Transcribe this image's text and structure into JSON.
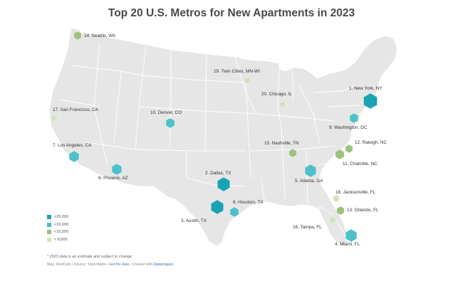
{
  "title": "Top 20 U.S. Metros for New Apartments in 2023",
  "legend": [
    {
      "label": ">25,000",
      "color": "#1aa3b3"
    },
    {
      "label": ">15,000",
      "color": "#4fc0c8"
    },
    {
      "label": "<15,000",
      "color": "#9dc27d"
    },
    {
      "label": "< 8,000",
      "color": "#d4e3be"
    }
  ],
  "metros": [
    {
      "label": "1. New York, NY",
      "tier": 0
    },
    {
      "label": "2. Dallas, TX",
      "tier": 0
    },
    {
      "label": "3. Austin, TX",
      "tier": 0
    },
    {
      "label": "4. Miami, FL",
      "tier": 1
    },
    {
      "label": "5. Atlanta, GA",
      "tier": 1
    },
    {
      "label": "6. Phoenix, AZ",
      "tier": 1
    },
    {
      "label": "7. Los Angeles, CA",
      "tier": 1
    },
    {
      "label": "8. Houston, TX",
      "tier": 1
    },
    {
      "label": "9. Washington, DC",
      "tier": 1
    },
    {
      "label": "10. Denver, CO",
      "tier": 1
    },
    {
      "label": "11. Charlotte, NC",
      "tier": 2
    },
    {
      "label": "12. Raleigh, NC",
      "tier": 2
    },
    {
      "label": "13. Orlando, FL",
      "tier": 2
    },
    {
      "label": "14. Seattle, WA",
      "tier": 2
    },
    {
      "label": "15. Nashville, TN",
      "tier": 2
    },
    {
      "label": "16. Tampa, FL",
      "tier": 3
    },
    {
      "label": "17. San Francisco, CA",
      "tier": 3
    },
    {
      "label": "18. Jacksonville, FL",
      "tier": 3
    },
    {
      "label": "19. Twin Cities, MN-WI",
      "tier": 3
    },
    {
      "label": "20. Chicago, IL",
      "tier": 3
    }
  ],
  "footnote": "* 2023 data is an estimate and subject to change",
  "source": {
    "prefix": "Map: RentCafe • Source: Yardi Matrix •",
    "link1": "Get the data",
    "middle": "• Created with",
    "link2": "Datawrapper"
  }
}
